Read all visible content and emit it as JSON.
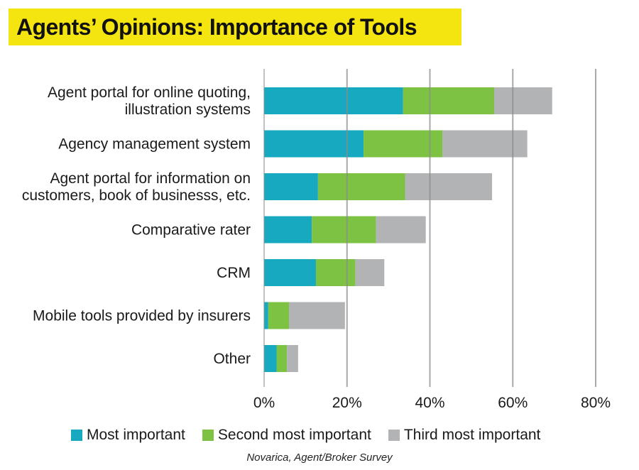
{
  "title": "Agents’ Opinions: Importance of Tools",
  "source": "Novarica, Agent/Broker Survey",
  "colors": {
    "title_background": "#f4e40f",
    "most_important": "#17a9bf",
    "second_most_important": "#7dc242",
    "third_most_important": "#b1b3b4",
    "gridline": "#8c8c8c"
  },
  "chart_data": {
    "type": "bar",
    "orientation": "horizontal",
    "stacked": true,
    "title": "Agents’ Opinions: Importance of Tools",
    "xlabel": "",
    "ylabel": "",
    "xlim": [
      0,
      80
    ],
    "x_ticks": [
      "0%",
      "20%",
      "40%",
      "60%",
      "80%"
    ],
    "x_tick_values": [
      0,
      20,
      40,
      60,
      80
    ],
    "grid": true,
    "legend_position": "bottom",
    "categories": [
      "Agent portal for online quoting,\nillustration systems",
      "Agency management system",
      "Agent portal for information on\ncustomers, book of businesss, etc.",
      "Comparative rater",
      "CRM",
      "Mobile tools provided by insurers",
      "Other"
    ],
    "series": [
      {
        "name": "Most important",
        "color": "#17a9bf",
        "values": [
          33.5,
          24,
          13,
          11.5,
          12.5,
          1,
          3
        ]
      },
      {
        "name": "Second most important",
        "color": "#7dc242",
        "values": [
          22,
          19,
          21,
          15.5,
          9.5,
          5,
          2.5
        ]
      },
      {
        "name": "Third most important",
        "color": "#b1b3b4",
        "values": [
          14,
          20.5,
          21,
          12,
          7,
          13.5,
          2.7
        ]
      }
    ]
  }
}
